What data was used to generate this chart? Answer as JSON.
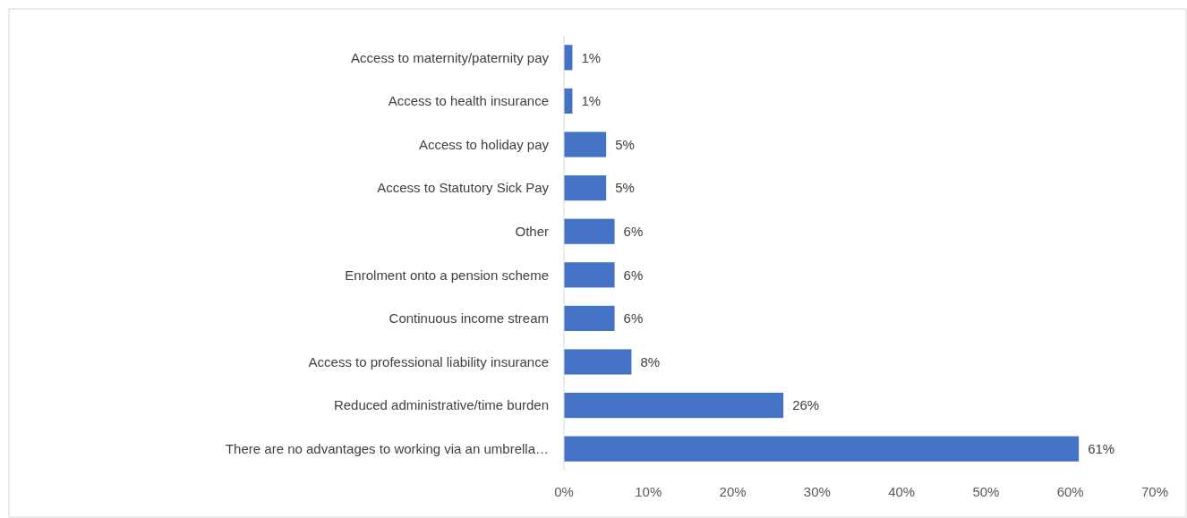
{
  "chart_data": {
    "type": "bar",
    "orientation": "horizontal",
    "categories": [
      "Access to maternity/paternity pay",
      "Access to health insurance",
      "Access to holiday pay",
      "Access to Statutory Sick Pay",
      "Other",
      "Enrolment onto a pension scheme",
      "Continuous income stream",
      "Access to professional liability insurance",
      "Reduced administrative/time burden",
      "There are no advantages to working via an umbrella…"
    ],
    "values": [
      1,
      1,
      5,
      5,
      6,
      6,
      6,
      8,
      26,
      61
    ],
    "value_labels": [
      "1%",
      "1%",
      "5%",
      "5%",
      "6%",
      "6%",
      "6%",
      "8%",
      "26%",
      "61%"
    ],
    "color": "#4472c4",
    "xlim": [
      0,
      70
    ],
    "xticks": [
      {
        "value": 0,
        "label": "0%"
      },
      {
        "value": 10,
        "label": "10%"
      },
      {
        "value": 20,
        "label": "20%"
      },
      {
        "value": 30,
        "label": "30%"
      },
      {
        "value": 40,
        "label": "40%"
      },
      {
        "value": 50,
        "label": "50%"
      },
      {
        "value": 60,
        "label": "60%"
      },
      {
        "value": 70,
        "label": "70%"
      }
    ],
    "grid": false
  }
}
